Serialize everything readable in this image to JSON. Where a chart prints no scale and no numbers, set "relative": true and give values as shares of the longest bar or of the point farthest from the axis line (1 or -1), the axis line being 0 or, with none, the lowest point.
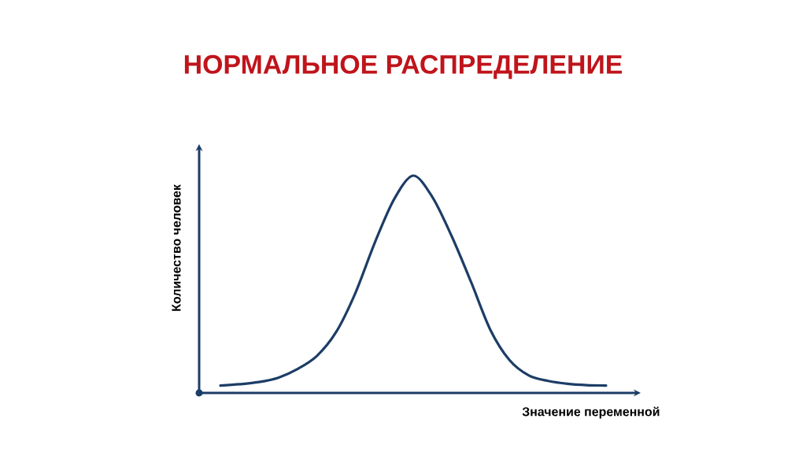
{
  "chart_data": {
    "type": "line",
    "title": "НОРМАЛЬНОЕ РАСПРЕДЕЛЕНИЕ",
    "xlabel": "Значение переменной",
    "ylabel": "Количество человек",
    "relative": true,
    "categories": [
      null,
      null,
      null,
      null,
      null,
      null,
      null,
      null,
      null,
      null,
      null,
      null,
      null,
      null,
      null,
      null,
      null,
      null,
      null,
      null,
      null
    ],
    "series": [
      {
        "color": "#1c3d66",
        "values": [
          0.034,
          0.04,
          0.05,
          0.07,
          0.11,
          0.17,
          0.28,
          0.46,
          0.69,
          0.89,
          1.0,
          0.9,
          0.72,
          0.51,
          0.29,
          0.15,
          0.08,
          0.055,
          0.042,
          0.036,
          0.034
        ]
      }
    ]
  }
}
